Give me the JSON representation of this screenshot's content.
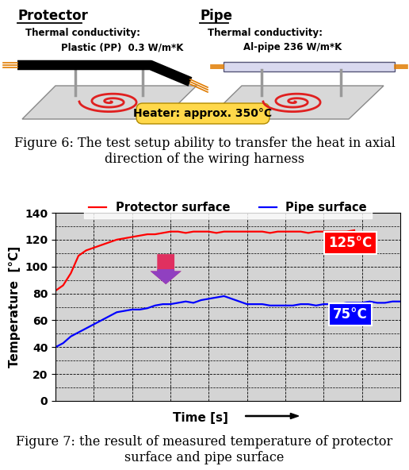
{
  "diagram": {
    "protector": {
      "title": "Protector",
      "conductivity_label": "Thermal conductivity:",
      "material": "Plastic (PP)  0.3 W/m*K"
    },
    "pipe": {
      "title": "Pipe",
      "conductivity_label": "Thermal conductivity:",
      "material": "Al-pipe 236 W/m*K"
    },
    "heater": "Heater: approx. 350°C",
    "caption": "Figure 6: The test setup ability to transfer the heat in axial direction of the wiring harness"
  },
  "chart_data": {
    "type": "line",
    "x": [
      0,
      2,
      4,
      6,
      8,
      10,
      12,
      14,
      16,
      18,
      20,
      22,
      24,
      26,
      28,
      30,
      32,
      34,
      36,
      38,
      40,
      42,
      44,
      46,
      48,
      50,
      52,
      54,
      56,
      58,
      60,
      62,
      64,
      66,
      68,
      70,
      72,
      74,
      76,
      78,
      80,
      82,
      84,
      86,
      88,
      90
    ],
    "xlim": [
      0,
      90
    ],
    "xticks": [
      0,
      10,
      20,
      30,
      40,
      50,
      60,
      70,
      80,
      90
    ],
    "ylim": [
      0,
      140
    ],
    "yticks": [
      0,
      20,
      40,
      60,
      80,
      100,
      120,
      140
    ],
    "xlabel": "Time [s]",
    "ylabel": "Temperature  [°C]",
    "grid": true,
    "legend": "upper center",
    "tick_labels": "y",
    "series": [
      {
        "name": "Protector surface",
        "color": "#ff0000",
        "values": [
          82,
          86,
          95,
          108,
          112,
          114,
          116,
          118,
          120,
          121,
          122,
          123,
          124,
          124,
          125,
          126,
          126,
          125,
          126,
          126,
          126,
          125,
          126,
          126,
          126,
          126,
          126,
          126,
          125,
          126,
          126,
          126,
          126,
          125,
          126,
          126,
          126,
          126,
          126,
          127,
          null,
          null,
          null,
          null,
          null,
          null
        ]
      },
      {
        "name": "Pipe surface",
        "color": "#0000ff",
        "values": [
          40,
          43,
          48,
          51,
          54,
          57,
          60,
          63,
          66,
          67,
          68,
          68,
          69,
          71,
          72,
          72,
          73,
          74,
          73,
          75,
          76,
          77,
          78,
          76,
          74,
          72,
          72,
          72,
          71,
          71,
          71,
          71,
          72,
          72,
          71,
          72,
          72,
          72,
          73,
          73,
          73,
          74,
          73,
          73,
          74,
          74
        ]
      }
    ],
    "annotations": [
      "125°C",
      "75°C"
    ],
    "caption": "Figure 7: the result of measured temperature of protector surface and pipe surface"
  }
}
